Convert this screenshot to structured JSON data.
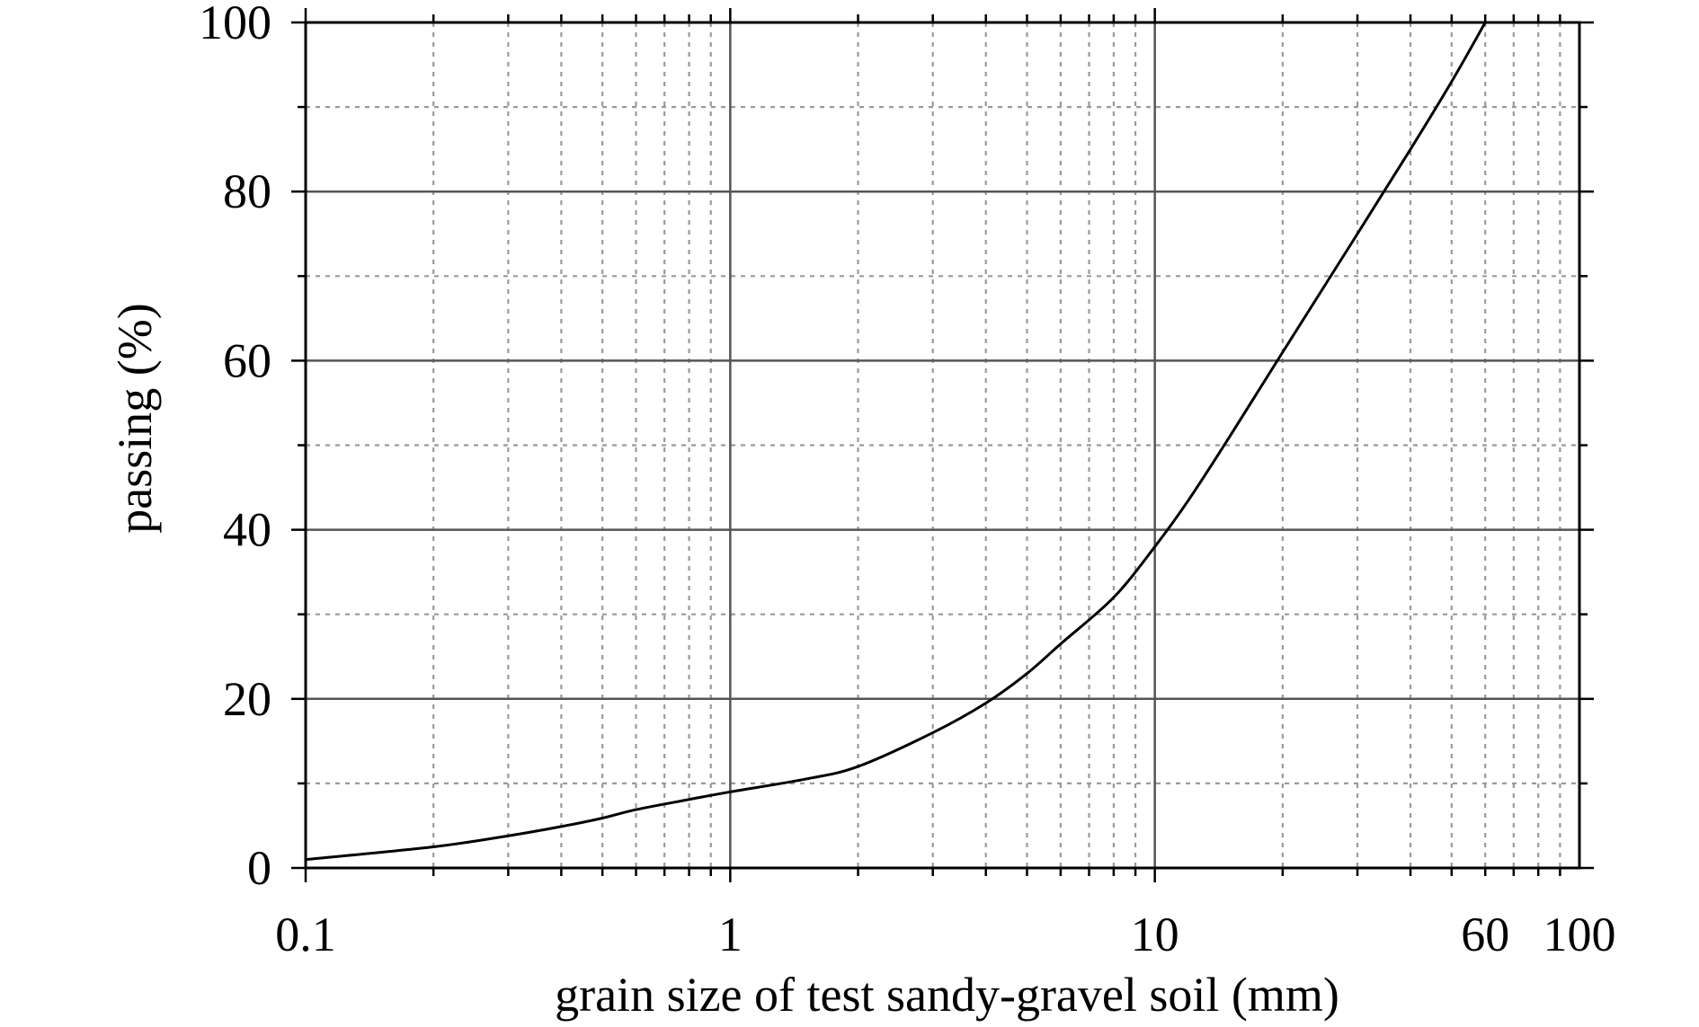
{
  "chart_data": {
    "type": "line",
    "title": "",
    "xlabel": "grain size of test sandy-gravel soil (mm)",
    "ylabel": "passing (%)",
    "xscale": "log",
    "xlim": [
      0.1,
      100
    ],
    "ylim": [
      0,
      100
    ],
    "x_tick_labels": [
      {
        "value": 0.1,
        "label": "0.1"
      },
      {
        "value": 1,
        "label": "1"
      },
      {
        "value": 10,
        "label": "10"
      },
      {
        "value": 60,
        "label": "60"
      },
      {
        "value": 100,
        "label": "100"
      }
    ],
    "y_tick_labels": [
      {
        "value": 0,
        "label": "0"
      },
      {
        "value": 20,
        "label": "20"
      },
      {
        "value": 40,
        "label": "40"
      },
      {
        "value": 60,
        "label": "60"
      },
      {
        "value": 80,
        "label": "80"
      },
      {
        "value": 100,
        "label": "100"
      }
    ],
    "grid": {
      "major": true,
      "minor": true
    },
    "legend": "none",
    "series": [
      {
        "color": "#000000",
        "x": [
          0.1,
          0.2,
          0.3,
          0.4,
          0.5,
          0.6,
          0.8,
          1,
          1.5,
          2,
          3,
          4,
          5,
          6,
          8,
          10,
          12,
          15,
          20,
          30,
          40,
          50,
          60
        ],
        "y": [
          1,
          2.5,
          3.8,
          4.9,
          5.9,
          6.9,
          8.1,
          9,
          10.5,
          12,
          16,
          19.5,
          23,
          26.5,
          32,
          38,
          43.5,
          51,
          61,
          75,
          85,
          93,
          100
        ]
      }
    ]
  }
}
